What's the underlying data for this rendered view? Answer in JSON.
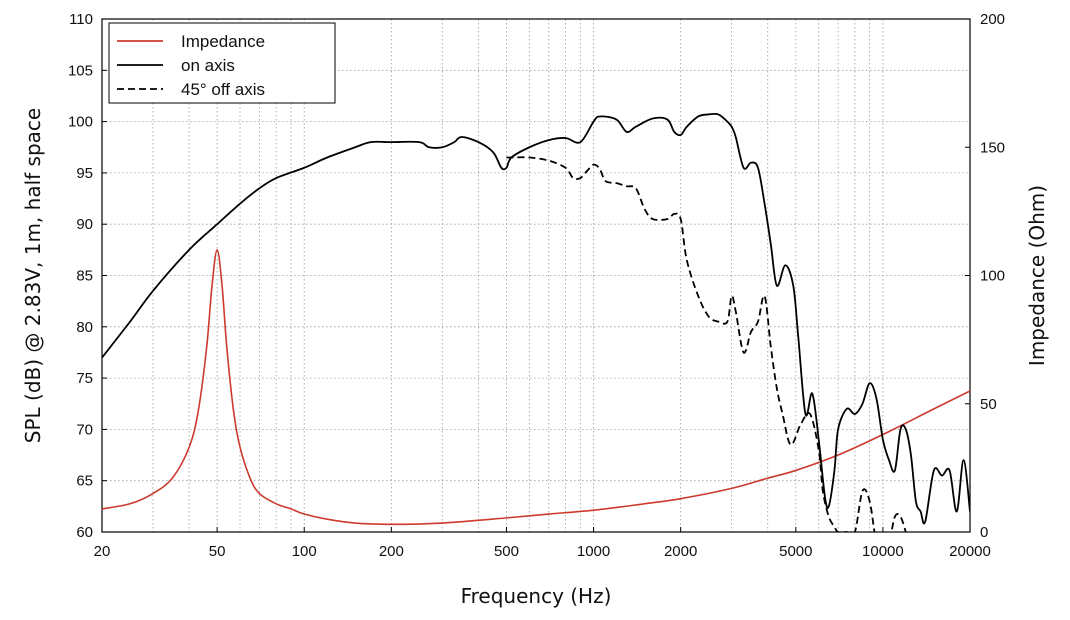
{
  "chart_data": {
    "type": "line",
    "xlabel": "Frequency (Hz)",
    "ylabel_left": "SPL (dB) @ 2.83V, 1m, half space",
    "ylabel_right": "Impedance (Ohm)",
    "x_scale": "log",
    "xlim": [
      20,
      20000
    ],
    "ylim_left": [
      60,
      110
    ],
    "ylim_right": [
      0,
      200
    ],
    "grid": true,
    "legend_position": "top-left",
    "x_ticks": [
      20,
      50,
      100,
      200,
      500,
      1000,
      2000,
      5000,
      10000,
      20000
    ],
    "x_tick_labels": [
      "20",
      "50",
      "100",
      "200",
      "500",
      "1000",
      "2000",
      "5000",
      "10000",
      "20000"
    ],
    "y_ticks_left": [
      60,
      65,
      70,
      75,
      80,
      85,
      90,
      95,
      100,
      105,
      110
    ],
    "y_tick_labels_left": [
      "60",
      "65",
      "70",
      "75",
      "80",
      "85",
      "90",
      "95",
      "100",
      "105",
      "110"
    ],
    "y_ticks_right": [
      0,
      50,
      100,
      150,
      200
    ],
    "y_tick_labels_right": [
      "0",
      "50",
      "100",
      "150",
      "200"
    ],
    "series": [
      {
        "name": "Impedance",
        "axis": "right",
        "color": "#cc3a2e",
        "dash": "solid",
        "x": [
          20,
          25,
          30,
          35,
          40,
          43,
          46,
          48,
          50,
          52,
          54,
          57,
          60,
          65,
          70,
          80,
          90,
          100,
          120,
          150,
          200,
          300,
          500,
          700,
          1000,
          1500,
          2000,
          3000,
          4000,
          5000,
          7000,
          10000,
          15000,
          20000
        ],
        "values": [
          9,
          11,
          15,
          21,
          33,
          47,
          72,
          96,
          110,
          96,
          72,
          47,
          33,
          21,
          15,
          11,
          9,
          7,
          5,
          3.5,
          3,
          3.5,
          5.5,
          7,
          8.5,
          11,
          13,
          17,
          21,
          24,
          30,
          38,
          48,
          55
        ]
      },
      {
        "name": "on axis",
        "axis": "left",
        "color": "#000000",
        "dash": "solid",
        "x": [
          20,
          25,
          30,
          40,
          50,
          60,
          70,
          80,
          100,
          120,
          150,
          170,
          200,
          250,
          270,
          300,
          330,
          350,
          400,
          450,
          480,
          500,
          520,
          600,
          700,
          800,
          900,
          1000,
          1050,
          1200,
          1300,
          1400,
          1600,
          1800,
          1900,
          2000,
          2100,
          2300,
          2500,
          2700,
          2900,
          3000,
          3100,
          3300,
          3500,
          3700,
          3900,
          4100,
          4300,
          4600,
          4900,
          5100,
          5400,
          5700,
          6000,
          6300,
          6500,
          6800,
          7000,
          7500,
          8000,
          8500,
          9000,
          9500,
          10000,
          10500,
          11000,
          11500,
          12000,
          12500,
          13000,
          13500,
          14000,
          15000,
          16000,
          17000,
          18000,
          19000,
          20000
        ],
        "values": [
          77,
          80.5,
          83.5,
          87.5,
          90,
          92,
          93.5,
          94.5,
          95.5,
          96.5,
          97.5,
          98,
          98,
          98,
          97.5,
          97.5,
          98,
          98.5,
          98,
          97,
          95.5,
          95.5,
          96.5,
          97.5,
          98.2,
          98.4,
          98,
          100,
          100.5,
          100.2,
          99,
          99.5,
          100.3,
          100.2,
          99,
          98.7,
          99.5,
          100.5,
          100.7,
          100.7,
          100,
          99.5,
          98.5,
          95.5,
          96,
          95.5,
          92,
          88,
          84,
          86,
          84,
          79,
          71.5,
          73.5,
          69,
          63.5,
          62.5,
          66,
          70,
          72,
          71.5,
          72.5,
          74.5,
          73,
          69,
          67,
          66,
          70,
          70,
          67.5,
          63,
          62,
          61,
          66,
          65.5,
          66,
          62,
          67,
          62
        ]
      },
      {
        "name": "45° off axis",
        "axis": "left",
        "color": "#000000",
        "dash": "dashed",
        "x": [
          500,
          520,
          600,
          700,
          800,
          850,
          900,
          950,
          1000,
          1050,
          1100,
          1200,
          1300,
          1400,
          1500,
          1600,
          1800,
          1900,
          2000,
          2100,
          2300,
          2500,
          2700,
          2900,
          3000,
          3100,
          3300,
          3500,
          3700,
          3900,
          4100,
          4300,
          4500,
          4800,
          5200,
          5600,
          6000,
          6200,
          6500,
          6800,
          7000,
          7500,
          8000,
          8500,
          9000,
          9500,
          10000,
          10500,
          11000,
          11500,
          12000
        ],
        "values": [
          96.5,
          96.5,
          96.5,
          96.2,
          95.5,
          94.5,
          94.5,
          95.2,
          95.8,
          95.4,
          94.2,
          94,
          93.7,
          93.5,
          91.5,
          90.5,
          90.5,
          91,
          90.5,
          86.5,
          83,
          81,
          80.5,
          80.5,
          83,
          81.5,
          77.5,
          79.5,
          80.5,
          83,
          78,
          74,
          71.5,
          68.5,
          70.5,
          71.5,
          68,
          64,
          61.5,
          60.5,
          60,
          60,
          60,
          64,
          63,
          59,
          59,
          59,
          61.5,
          61.5,
          60
        ]
      }
    ]
  }
}
